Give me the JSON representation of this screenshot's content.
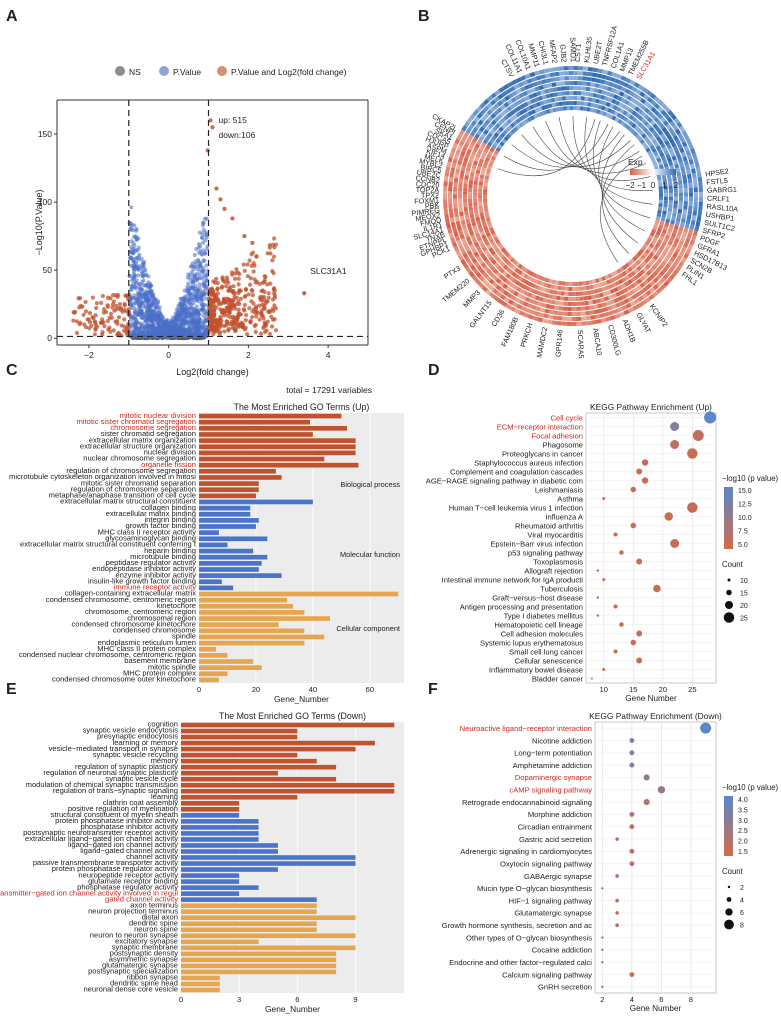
{
  "panel_labels": [
    "A",
    "B",
    "C",
    "D",
    "E",
    "F"
  ],
  "chart_data": [
    {
      "id": "A",
      "type": "scatter",
      "legend": [
        "NS",
        "P.Value",
        "P.Value and Log2(fold change)"
      ],
      "legend_colors": [
        "#8c8c8c",
        "#8ea6d6",
        "#d39272"
      ],
      "xlabel": "Log2(fold change)",
      "ylabel": "−Log10(P.Value)",
      "xlim": [
        -2.8,
        5
      ],
      "ylim": [
        -5,
        175
      ],
      "xticks": [
        -2,
        0,
        2,
        4
      ],
      "yticks": [
        0,
        50,
        100,
        150
      ],
      "thresholds": {
        "log2fc": [
          -1,
          1
        ],
        "neglog10p": 1.3
      },
      "annotation": [
        "up: 515",
        "down:106"
      ],
      "highlight": {
        "label": "SLC31A1",
        "x": 3.4,
        "y": 33
      },
      "footer": "total = 17291 variables",
      "colors": {
        "ns": "#555555",
        "pval": "#4a6fc8",
        "both": "#c0522d"
      }
    },
    {
      "id": "B",
      "type": "heatmap",
      "legend_title": "Exp",
      "legend_ticks": [
        "−2",
        "−1",
        "0",
        "1",
        "2"
      ],
      "highlight_gene": "SLC31A1",
      "genes_left": [
        "CKAP2L",
        "CENPI",
        "SKA1",
        "CDCA5",
        "HJURP",
        "ASPM",
        "KIF14",
        "MELK",
        "MYBL2",
        "BIRC5",
        "UBE2C",
        "CCNB2",
        "CDC20",
        "TOP2A",
        "TPX2",
        "FOXM1",
        "PBK",
        "PIMREG",
        "MEOX2",
        "FMOD",
        "IL1R1",
        "SLC14A1",
        "TNXB",
        "ETNPPL",
        "GPHBP1",
        "PCK1"
      ],
      "genes_top": [
        "CTSV",
        "COL11A1",
        "COL10A1",
        "MMP11",
        "CHI3L1",
        "MFAP2",
        "GJB2",
        "SAMD1",
        "CST1",
        "KLHL35",
        "UBE2T",
        "TNFRSF12A",
        "COL1A1",
        "MMP13",
        "TMEM255B",
        "SLC31A1"
      ],
      "genes_right": [
        "HPSE2",
        "FSTL5",
        "GABRG1",
        "CRLF1",
        "RASL10A",
        "USHBP1",
        "SULT1C2",
        "SFRP2",
        "PDGF",
        "GFRA1",
        "HSD17B13",
        "SCN2B",
        "PLIN1",
        "FHL1"
      ],
      "genes_bottom": [
        "PTX3",
        "TMEM220",
        "MMP3",
        "GALNT15",
        "CD36",
        "FAM180B",
        "PRKCH",
        "MAMDC2",
        "GPR146",
        "SCARA5",
        "ABCA10",
        "CD300LG",
        "ADH1B",
        "GLYAT",
        "KCNIP2"
      ]
    },
    {
      "id": "C",
      "type": "bar",
      "orientation": "horizontal",
      "title": "The Most Enriched GO Terms (Up)",
      "xlabel": "Gene_Number",
      "xlim": [
        0,
        72
      ],
      "xticks": [
        0,
        20,
        40,
        60
      ],
      "groups": [
        "Biological process",
        "Molecular function",
        "Cellular component"
      ],
      "colors": [
        "#c0522d",
        "#4a74c9",
        "#e6a64f"
      ],
      "highlight_color": "#c8281e",
      "categories": [
        "mitotic nuclear division",
        "mitotic sister chromatid segregation",
        "chromosome segregation",
        "sister chromatid segregation",
        "extracellular matrix organization",
        "extracellular structure organization",
        "nuclear division",
        "nuclear chromosome segregation",
        "organelle fission",
        "regulation of chromosome segregation",
        "microtubule cytoskeleton organization involved in mitosis",
        "mitotic sister chromatid separation",
        "regulation of chromosome separation",
        "metaphase/anaphase transition of cell cycle",
        "extracellular matrix structural constituent",
        "collagen binding",
        "extracellular matrix binding",
        "integrin binding",
        "growth factor binding",
        "MHC class II receptor activity",
        "glycosaminoglycan binding",
        "extracellular matrix structural constituent conferring tensile strength",
        "heparin binding",
        "microtubule binding",
        "peptidase regulator activity",
        "endopeptidase inhibitor activity",
        "enzyme inhibitor activity",
        "insulin-like growth factor binding",
        "immune receptor activity",
        "collagen-containing extracellular matrix",
        "condensed chromosome, centromeric region",
        "kinetochore",
        "chromosome, centromeric region",
        "chromosomal region",
        "condensed chromosome kinetochore",
        "condensed chromosome",
        "spindle",
        "endoplasmic reticulum lumen",
        "MHC class II protein complex",
        "condensed nuclear chromosome, centromeric region",
        "basement membrane",
        "mitotic spindle",
        "MHC protein complex",
        "condensed chromosome outer kinetochore"
      ],
      "values": [
        50,
        39,
        52,
        40,
        55,
        55,
        55,
        44,
        56,
        27,
        29,
        21,
        21,
        20,
        40,
        18,
        18,
        21,
        20,
        7,
        24,
        10,
        19,
        24,
        22,
        21,
        29,
        8,
        12,
        70,
        31,
        33,
        37,
        46,
        28,
        37,
        44,
        37,
        6,
        10,
        19,
        22,
        10,
        7
      ],
      "group_index": [
        0,
        0,
        0,
        0,
        0,
        0,
        0,
        0,
        0,
        0,
        0,
        0,
        0,
        0,
        1,
        1,
        1,
        1,
        1,
        1,
        1,
        1,
        1,
        1,
        1,
        1,
        1,
        1,
        1,
        2,
        2,
        2,
        2,
        2,
        2,
        2,
        2,
        2,
        2,
        2,
        2,
        2,
        2,
        2
      ],
      "highlighted": [
        0,
        1,
        2,
        8,
        28
      ]
    },
    {
      "id": "D",
      "type": "scatter",
      "title": "KEGG Pathway Enrichment (Up)",
      "xlabel": "Gene Number",
      "xlim": [
        7,
        29
      ],
      "xticks": [
        10,
        15,
        20,
        25
      ],
      "color_title": "−log10 (p value)",
      "color_ticks": [
        "15.0",
        "12.5",
        "10.0",
        "7.5",
        "5.0"
      ],
      "color_range": [
        4,
        16
      ],
      "size_title": "Count",
      "size_ticks": [
        10,
        15,
        20,
        25
      ],
      "highlight_color": "#c8281e",
      "categories": [
        "Cell cycle",
        "ECM−receptor interaction",
        "Focal adhesion",
        "Phagosome",
        "Proteoglycans in cancer",
        "Staphylococcus aureus infection",
        "Complement and coagulation cascades",
        "AGE−RAGE signaling pathway in diabetic complications",
        "Leishmaniasis",
        "Asthma",
        "Human T−cell leukemia virus 1 infection",
        "Influenza A",
        "Rheumatoid arthritis",
        "Viral myocarditis",
        "Epstein−Barr virus infection",
        "p53 signaling pathway",
        "Toxoplasmosis",
        "Allograft rejection",
        "Intestinal immune network for IgA production",
        "Tuberculosis",
        "Graft−versus−host disease",
        "Antigen processing and presentation",
        "Type I diabetes mellitus",
        "Hematopoietic cell lineage",
        "Cell adhesion molecules",
        "Systemic lupus erythematosus",
        "Small cell lung cancer",
        "Cellular senescence",
        "Inflammatory bowel disease",
        "Bladder cancer"
      ],
      "x": [
        28,
        22,
        26,
        22,
        25,
        17,
        16,
        17,
        15,
        10,
        25,
        21,
        15,
        12,
        22,
        13,
        16,
        9,
        10,
        19,
        9,
        12,
        9,
        13,
        16,
        15,
        12,
        16,
        10,
        8
      ],
      "pvalue": [
        16,
        12,
        6,
        6,
        5,
        5,
        5,
        5,
        5,
        5,
        5,
        5,
        5,
        5,
        5,
        5,
        5,
        5,
        5,
        5,
        5,
        5,
        5,
        5,
        5,
        5,
        5,
        5,
        5,
        5
      ],
      "highlighted": [
        0,
        1,
        2
      ]
    },
    {
      "id": "E",
      "type": "bar",
      "orientation": "horizontal",
      "title": "The Most Enriched GO Terms (Down)",
      "xlabel": "Gene_Number",
      "xlim": [
        0,
        11.5
      ],
      "xticks": [
        0,
        3,
        6,
        9
      ],
      "colors": [
        "#c0522d",
        "#4a74c9",
        "#e6a64f"
      ],
      "highlight_color": "#c8281e",
      "categories": [
        "cognition",
        "synaptic vesicle endocytosis",
        "presynaptic endocytosis",
        "learning or memory",
        "vesicle−mediated transport in synapse",
        "synaptic vesicle recycling",
        "memory",
        "regulation of synaptic plasticity",
        "regulation of neuronal synaptic plasticity",
        "synaptic vesicle cycle",
        "modulation of chemical synaptic transmission",
        "regulation of trans−synaptic signaling",
        "learning",
        "clathrin coat assembly",
        "positive regulation of myelination",
        "structural constituent of myelin sheath",
        "protein phosphatase inhibitor activity",
        "phosphatase inhibitor activity",
        "postsynaptic neurotransmitter receptor activity",
        "extracellular ligand−gated ion channel activity",
        "ligand−gated ion channel activity",
        "ligand−gated channel activity",
        "channel activity",
        "passive transmembrane transporter activity",
        "protein phosphatase regulator activity",
        "neuropeptide receptor activity",
        "glutamate receptor binding",
        "phosphatase regulator activity",
        "transmitter−gated ion channel activity involved in regulation of postsynaptic membrane potential",
        "gated channel activity",
        "axon terminus",
        "neuron projection terminus",
        "distal axon",
        "dendritic spine",
        "neuron spine",
        "neuron to neuron synapse",
        "excitatory synapse",
        "synaptic membrane",
        "postsynaptic density",
        "asymmetric synapse",
        "glutamatergic synapse",
        "postsynaptic specialization",
        "ribbon synapse",
        "dendritic spine head",
        "neuronal dense core vesicle"
      ],
      "values": [
        11,
        6,
        6,
        10,
        9,
        6,
        7,
        8,
        5,
        8,
        11,
        11,
        6,
        3,
        3,
        3,
        4,
        4,
        4,
        4,
        5,
        5,
        9,
        9,
        5,
        3,
        3,
        4,
        3,
        7,
        7,
        7,
        9,
        7,
        7,
        9,
        4,
        9,
        8,
        8,
        8,
        8,
        2,
        2,
        2
      ],
      "group_index": [
        0,
        0,
        0,
        0,
        0,
        0,
        0,
        0,
        0,
        0,
        0,
        0,
        0,
        0,
        0,
        1,
        1,
        1,
        1,
        1,
        1,
        1,
        1,
        1,
        1,
        1,
        1,
        1,
        1,
        1,
        2,
        2,
        2,
        2,
        2,
        2,
        2,
        2,
        2,
        2,
        2,
        2,
        2,
        2,
        2
      ],
      "highlighted": [
        28,
        29
      ]
    },
    {
      "id": "F",
      "type": "scatter",
      "title": "KEGG Pathway Enrichment (Down)",
      "xlabel": "Gene Number",
      "xlim": [
        1.5,
        9.7
      ],
      "xticks": [
        2,
        4,
        6,
        8
      ],
      "color_title": "−log10 (p value)",
      "color_ticks": [
        "4.0",
        "3.5",
        "3.0",
        "2.5",
        "2.0",
        "1.5"
      ],
      "color_range": [
        1.3,
        4.3
      ],
      "size_title": "Count",
      "size_ticks": [
        2,
        4,
        6,
        8
      ],
      "highlight_color": "#c8281e",
      "categories": [
        "Neuroactive ligand−receptor interaction",
        "Nicotine addiction",
        "Long−term potentiation",
        "Amphetamine addiction",
        "Dopaminergic synapse",
        "cAMP signaling pathway",
        "Retrograde endocannabinoid signaling",
        "Morphine addiction",
        "Circadian entrainment",
        "Gastric acid secretion",
        "Adrenergic signaling in cardiomyocytes",
        "Oxytocin signaling pathway",
        "GABAergic synapse",
        "Mucin type O−glycan biosynthesis",
        "HIF−1 signaling pathway",
        "Glutamatergic synapse",
        "Growth hormone synthesis, secretion and action",
        "Other types of O−glycan biosynthesis",
        "Cocaine addiction",
        "Endocrine and other factor−regulated calcium reabsorption",
        "Calcium signaling pathway",
        "GnRH secretion"
      ],
      "x": [
        9,
        4,
        4,
        4,
        5,
        6,
        5,
        4,
        4,
        3,
        4,
        4,
        3,
        2,
        3,
        3,
        3,
        2,
        2,
        2,
        4,
        2
      ],
      "pvalue": [
        4.3,
        3.4,
        3.3,
        3.1,
        2.9,
        2.7,
        2.3,
        2.2,
        2.0,
        1.9,
        1.8,
        1.8,
        1.8,
        1.7,
        1.6,
        1.6,
        1.6,
        1.5,
        1.5,
        1.5,
        1.5,
        1.4
      ],
      "highlighted": [
        0,
        4,
        5
      ]
    }
  ]
}
